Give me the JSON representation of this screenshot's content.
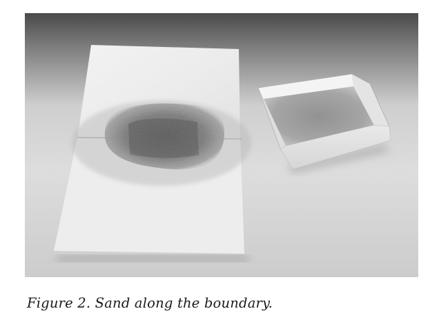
{
  "figure": {
    "caption": "Figure 2. Sand along the boundary."
  }
}
